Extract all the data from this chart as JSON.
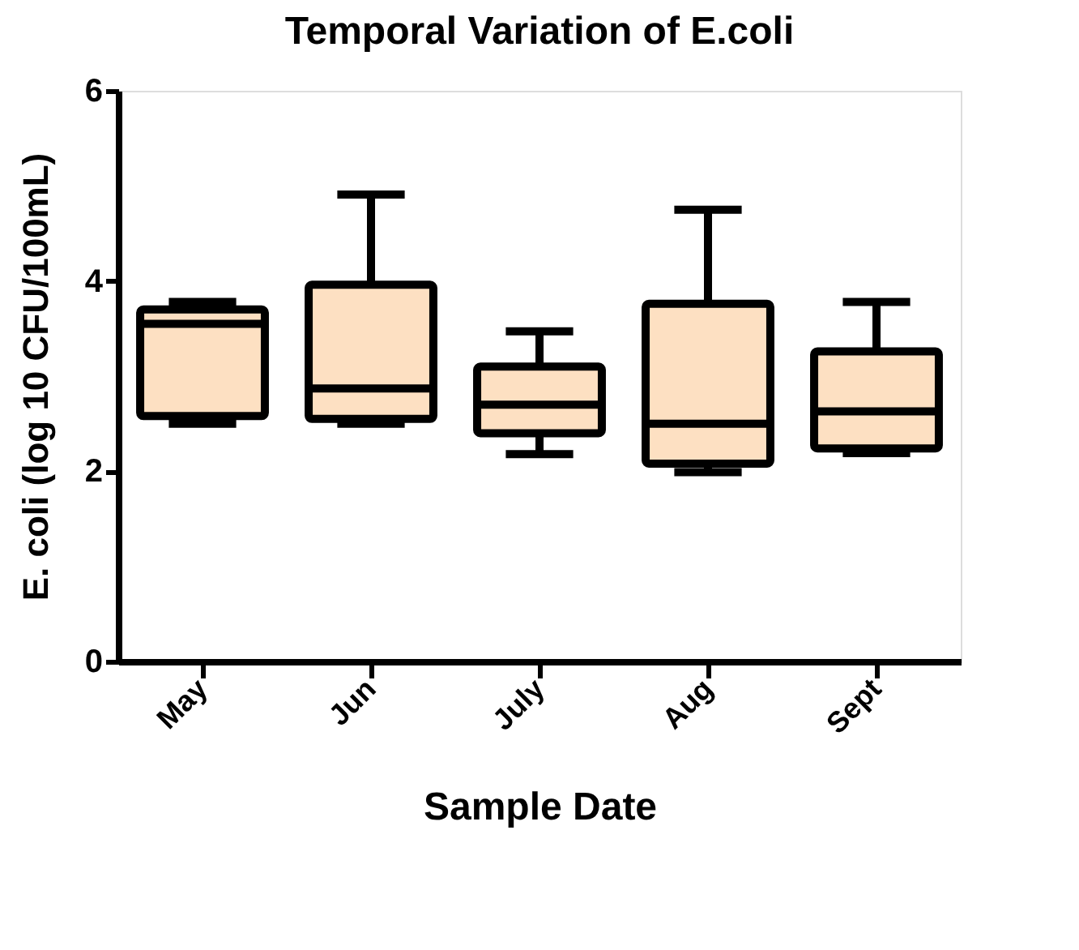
{
  "chart_data": {
    "type": "box",
    "title": "Temporal Variation of E.coli",
    "xlabel": "Sample Date",
    "ylabel": "E. coli (log 10 CFU/100mL)",
    "categories": [
      "May",
      "Jun",
      "July",
      "Aug",
      "Sept"
    ],
    "boxes": [
      {
        "low": 2.5,
        "q1": 2.58,
        "median": 3.55,
        "q3": 3.7,
        "high": 3.78
      },
      {
        "low": 2.5,
        "q1": 2.55,
        "median": 2.87,
        "q3": 3.96,
        "high": 4.91
      },
      {
        "low": 2.18,
        "q1": 2.4,
        "median": 2.7,
        "q3": 3.1,
        "high": 3.47
      },
      {
        "low": 1.99,
        "q1": 2.08,
        "median": 2.5,
        "q3": 3.76,
        "high": 4.75
      },
      {
        "low": 2.19,
        "q1": 2.24,
        "median": 2.63,
        "q3": 3.26,
        "high": 3.78
      }
    ],
    "color": "#fde0c2",
    "ylim": [
      0,
      6
    ],
    "yticks": [
      0,
      2,
      4,
      6
    ],
    "grid": false
  }
}
